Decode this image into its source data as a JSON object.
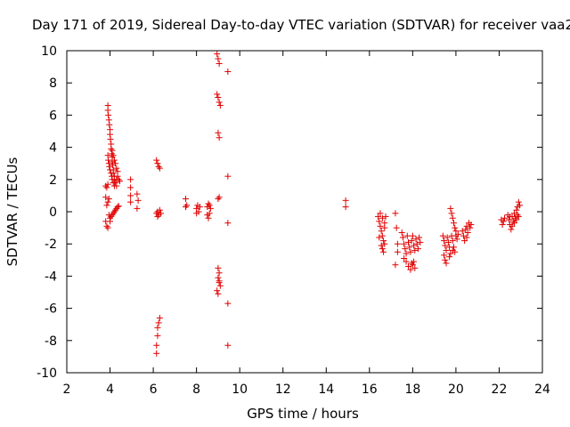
{
  "chart_data": {
    "type": "scatter",
    "title": "Day 171 of 2019, Sidereal Day-to-day VTEC variation (SDTVAR) for receiver vaa2",
    "xlabel": "GPS time / hours",
    "ylabel": "SDTVAR / TECUs",
    "xlim": [
      2,
      24
    ],
    "ylim": [
      -10,
      10
    ],
    "xticks": [
      2,
      4,
      6,
      8,
      10,
      12,
      14,
      16,
      18,
      20,
      22,
      24
    ],
    "yticks": [
      -10,
      -8,
      -6,
      -4,
      -2,
      0,
      2,
      4,
      6,
      8,
      10
    ],
    "marker": "+",
    "color": "#e00000",
    "series": [
      {
        "name": "vaa2",
        "points": [
          [
            3.8,
            1.6
          ],
          [
            3.85,
            1.5
          ],
          [
            3.9,
            1.7
          ],
          [
            3.8,
            0.9
          ],
          [
            3.85,
            0.4
          ],
          [
            3.9,
            0.6
          ],
          [
            3.95,
            0.8
          ],
          [
            3.8,
            -0.6
          ],
          [
            3.85,
            -0.9
          ],
          [
            3.9,
            -1.0
          ],
          [
            3.9,
            6.6
          ],
          [
            3.9,
            6.3
          ],
          [
            3.92,
            6.0
          ],
          [
            3.95,
            5.7
          ],
          [
            3.97,
            5.4
          ],
          [
            4.0,
            5.1
          ],
          [
            4.0,
            4.8
          ],
          [
            4.02,
            4.5
          ],
          [
            4.05,
            4.2
          ],
          [
            4.05,
            3.9
          ],
          [
            4.08,
            3.6
          ],
          [
            4.1,
            3.4
          ],
          [
            4.1,
            3.1
          ],
          [
            4.12,
            2.9
          ],
          [
            4.15,
            2.6
          ],
          [
            4.15,
            2.4
          ],
          [
            4.2,
            2.2
          ],
          [
            4.2,
            2.0
          ],
          [
            4.25,
            1.8
          ],
          [
            4.3,
            1.6
          ],
          [
            3.9,
            3.5
          ],
          [
            3.92,
            3.2
          ],
          [
            3.95,
            3.0
          ],
          [
            3.97,
            2.8
          ],
          [
            4.0,
            2.6
          ],
          [
            4.05,
            2.4
          ],
          [
            4.08,
            2.2
          ],
          [
            4.1,
            2.0
          ],
          [
            4.15,
            1.8
          ],
          [
            4.2,
            1.6
          ],
          [
            4.1,
            3.8
          ],
          [
            4.15,
            3.5
          ],
          [
            4.2,
            3.2
          ],
          [
            4.25,
            3.0
          ],
          [
            4.3,
            2.7
          ],
          [
            4.35,
            2.5
          ],
          [
            4.35,
            2.2
          ],
          [
            4.4,
            2.0
          ],
          [
            4.45,
            1.9
          ],
          [
            4.3,
            2.0
          ],
          [
            3.95,
            -0.2
          ],
          [
            4.0,
            -0.4
          ],
          [
            4.05,
            -0.3
          ],
          [
            4.1,
            -0.2
          ],
          [
            4.15,
            -0.1
          ],
          [
            4.2,
            0.0
          ],
          [
            4.25,
            0.1
          ],
          [
            4.3,
            0.2
          ],
          [
            4.35,
            0.3
          ],
          [
            4.4,
            0.35
          ],
          [
            4.0,
            -0.6
          ],
          [
            4.95,
            2.0
          ],
          [
            4.95,
            1.5
          ],
          [
            4.95,
            1.0
          ],
          [
            4.95,
            0.6
          ],
          [
            5.25,
            1.1
          ],
          [
            5.3,
            0.7
          ],
          [
            5.25,
            0.2
          ],
          [
            6.15,
            3.2
          ],
          [
            6.2,
            3.0
          ],
          [
            6.25,
            2.8
          ],
          [
            6.3,
            2.7
          ],
          [
            6.15,
            -0.1
          ],
          [
            6.2,
            0.0
          ],
          [
            6.25,
            -0.2
          ],
          [
            6.3,
            0.1
          ],
          [
            6.35,
            -0.1
          ],
          [
            6.2,
            -0.3
          ],
          [
            6.15,
            -8.8
          ],
          [
            6.15,
            -8.3
          ],
          [
            6.2,
            -7.7
          ],
          [
            6.2,
            -7.2
          ],
          [
            6.25,
            -6.9
          ],
          [
            6.3,
            -6.6
          ],
          [
            7.5,
            0.8
          ],
          [
            7.5,
            0.3
          ],
          [
            7.55,
            0.4
          ],
          [
            8.0,
            0.2
          ],
          [
            8.05,
            0.4
          ],
          [
            8.1,
            0.0
          ],
          [
            8.15,
            0.3
          ],
          [
            8.0,
            -0.1
          ],
          [
            8.5,
            0.3
          ],
          [
            8.55,
            0.5
          ],
          [
            8.6,
            -0.1
          ],
          [
            8.65,
            0.2
          ],
          [
            8.5,
            -0.2
          ],
          [
            8.55,
            -0.4
          ],
          [
            8.6,
            0.4
          ],
          [
            8.95,
            9.8
          ],
          [
            9.0,
            9.5
          ],
          [
            9.05,
            9.2
          ],
          [
            8.95,
            7.3
          ],
          [
            9.0,
            7.1
          ],
          [
            9.05,
            6.8
          ],
          [
            9.1,
            6.6
          ],
          [
            9.0,
            4.9
          ],
          [
            9.05,
            4.6
          ],
          [
            9.0,
            0.8
          ],
          [
            9.05,
            0.9
          ],
          [
            9.0,
            -3.5
          ],
          [
            9.05,
            -3.8
          ],
          [
            9.0,
            -4.1
          ],
          [
            9.05,
            -4.4
          ],
          [
            9.1,
            -4.6
          ],
          [
            8.95,
            -4.9
          ],
          [
            9.0,
            -5.1
          ],
          [
            9.05,
            -4.3
          ],
          [
            9.45,
            8.7
          ],
          [
            9.45,
            2.2
          ],
          [
            9.45,
            -0.7
          ],
          [
            9.45,
            -5.7
          ],
          [
            9.45,
            -8.3
          ],
          [
            14.9,
            0.7
          ],
          [
            14.9,
            0.3
          ],
          [
            16.4,
            -0.3
          ],
          [
            16.45,
            -0.6
          ],
          [
            16.5,
            -0.9
          ],
          [
            16.55,
            -1.2
          ],
          [
            16.6,
            -1.5
          ],
          [
            16.65,
            -1.8
          ],
          [
            16.7,
            -2.0
          ],
          [
            16.5,
            -0.1
          ],
          [
            16.6,
            -0.4
          ],
          [
            16.7,
            -0.7
          ],
          [
            16.45,
            -1.6
          ],
          [
            16.55,
            -2.1
          ],
          [
            16.6,
            -2.3
          ],
          [
            16.65,
            -2.5
          ],
          [
            16.7,
            -1.0
          ],
          [
            16.75,
            -0.3
          ],
          [
            17.2,
            -0.1
          ],
          [
            17.25,
            -1.0
          ],
          [
            17.3,
            -2.0
          ],
          [
            17.3,
            -2.5
          ],
          [
            17.2,
            -3.3
          ],
          [
            17.5,
            -1.3
          ],
          [
            17.55,
            -1.6
          ],
          [
            17.6,
            -2.0
          ],
          [
            17.65,
            -2.3
          ],
          [
            17.7,
            -2.6
          ],
          [
            17.6,
            -2.9
          ],
          [
            17.7,
            -3.1
          ],
          [
            17.75,
            -1.5
          ],
          [
            17.8,
            -1.9
          ],
          [
            17.85,
            -2.2
          ],
          [
            17.9,
            -2.5
          ],
          [
            17.95,
            -1.8
          ],
          [
            18.0,
            -1.5
          ],
          [
            18.05,
            -2.1
          ],
          [
            18.1,
            -2.4
          ],
          [
            18.15,
            -1.7
          ],
          [
            18.2,
            -2.0
          ],
          [
            18.25,
            -2.3
          ],
          [
            18.3,
            -1.6
          ],
          [
            18.35,
            -1.9
          ],
          [
            17.8,
            -3.4
          ],
          [
            17.9,
            -3.6
          ],
          [
            18.0,
            -3.3
          ],
          [
            18.05,
            -3.1
          ],
          [
            18.1,
            -3.5
          ],
          [
            17.95,
            -3.2
          ],
          [
            19.4,
            -1.5
          ],
          [
            19.45,
            -1.8
          ],
          [
            19.5,
            -2.1
          ],
          [
            19.55,
            -2.4
          ],
          [
            19.45,
            -2.7
          ],
          [
            19.5,
            -3.0
          ],
          [
            19.55,
            -3.2
          ],
          [
            19.6,
            -1.6
          ],
          [
            19.65,
            -1.9
          ],
          [
            19.7,
            -2.2
          ],
          [
            19.75,
            0.2
          ],
          [
            19.8,
            -0.1
          ],
          [
            19.85,
            -0.4
          ],
          [
            19.9,
            -0.7
          ],
          [
            19.95,
            -1.0
          ],
          [
            20.0,
            -1.2
          ],
          [
            19.8,
            -1.5
          ],
          [
            19.85,
            -1.8
          ],
          [
            19.9,
            -2.2
          ],
          [
            19.95,
            -2.5
          ],
          [
            19.7,
            -2.8
          ],
          [
            19.75,
            -2.6
          ],
          [
            19.85,
            -2.4
          ],
          [
            20.0,
            -1.5
          ],
          [
            20.05,
            -1.7
          ],
          [
            20.1,
            -1.4
          ],
          [
            20.3,
            -1.2
          ],
          [
            20.35,
            -1.5
          ],
          [
            20.4,
            -1.8
          ],
          [
            20.45,
            -1.1
          ],
          [
            20.5,
            -0.9
          ],
          [
            20.55,
            -1.3
          ],
          [
            20.6,
            -0.7
          ],
          [
            20.65,
            -1.0
          ],
          [
            20.7,
            -0.8
          ],
          [
            20.5,
            -1.6
          ],
          [
            22.1,
            -0.5
          ],
          [
            22.15,
            -0.8
          ],
          [
            22.2,
            -0.6
          ],
          [
            22.25,
            -0.4
          ],
          [
            22.4,
            -0.2
          ],
          [
            22.45,
            -0.5
          ],
          [
            22.5,
            -0.8
          ],
          [
            22.55,
            -1.1
          ],
          [
            22.6,
            -0.3
          ],
          [
            22.65,
            -0.6
          ],
          [
            22.7,
            -0.1
          ],
          [
            22.75,
            -0.4
          ],
          [
            22.8,
            0.1
          ],
          [
            22.85,
            -0.2
          ],
          [
            22.9,
            0.6
          ],
          [
            22.95,
            0.4
          ],
          [
            22.85,
            0.3
          ],
          [
            22.6,
            -0.9
          ],
          [
            22.7,
            -0.7
          ],
          [
            22.5,
            -0.3
          ],
          [
            22.9,
            -0.3
          ],
          [
            22.8,
            -0.5
          ]
        ]
      }
    ]
  }
}
